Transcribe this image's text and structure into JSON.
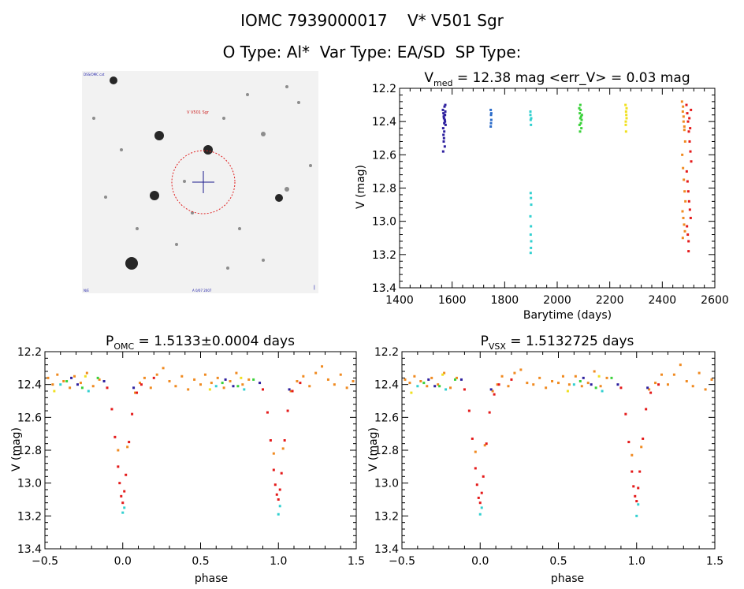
{
  "header": {
    "title_line1": "IOMC 7939000017    V* V501 Sgr",
    "title_line2": "O Type: Al*  Var Type: EA/SD  SP Type:"
  },
  "finder": {
    "target_label": "V V501 Sgr",
    "top_left_label": "DSS/OMC cat",
    "bottom_center_label": "A 0/07 2007",
    "bottom_left_label": "N/E",
    "colors": {
      "background": "#f2f2f2",
      "star": "#111111",
      "circle": "#e02020",
      "marker": "#1a1a8c"
    }
  },
  "panels": {
    "lightcurve": {
      "title_main": "V",
      "title_sub": "med",
      "title_rest": " = 12.38 mag <err_V> = 0.03 mag",
      "xlabel": "Barytime (days)",
      "ylabel": "V (mag)"
    },
    "phase_omc": {
      "title_main": "P",
      "title_sub": "OMC",
      "title_rest": " = 1.5133±0.0004 days",
      "xlabel": "phase",
      "ylabel": "V (mag)"
    },
    "phase_vsx": {
      "title_main": "P",
      "title_sub": "VSX",
      "title_rest": " = 1.5132725 days",
      "xlabel": "phase",
      "ylabel": "V (mag)"
    }
  },
  "chart_data": [
    {
      "type": "scatter",
      "title": "Vmed = 12.38 mag <err_V> = 0.03 mag",
      "xlabel": "Barytime (days)",
      "ylabel": "V (mag)",
      "xlim": [
        1400,
        2600
      ],
      "ylim": [
        12.2,
        13.4
      ],
      "y_inverted": true,
      "xticks": [
        "1400",
        "1600",
        "1800",
        "2000",
        "2200",
        "2400",
        "2600"
      ],
      "yticks": [
        "12.2",
        "12.4",
        "12.6",
        "12.8",
        "13.0",
        "13.2",
        "13.4"
      ],
      "series": [
        {
          "color": "#2d1f9e",
          "x": [
            1565,
            1567,
            1569,
            1571,
            1573,
            1575,
            1566,
            1568,
            1572,
            1570,
            1574,
            1567,
            1569,
            1571,
            1573,
            1568,
            1570,
            1572,
            1566,
            1574
          ],
          "y": [
            12.33,
            12.35,
            12.38,
            12.36,
            12.4,
            12.42,
            12.44,
            12.37,
            12.39,
            12.46,
            12.34,
            12.48,
            12.5,
            12.31,
            12.36,
            12.52,
            12.41,
            12.55,
            12.58,
            12.3
          ]
        },
        {
          "color": "#2a6bc9",
          "x": [
            1747,
            1748,
            1749,
            1748,
            1747,
            1749
          ],
          "y": [
            12.33,
            12.36,
            12.39,
            12.41,
            12.43,
            12.35
          ]
        },
        {
          "color": "#32d0d0",
          "x": [
            1898,
            1899,
            1900,
            1901,
            1899,
            1900,
            1901,
            1898,
            1900,
            1899,
            1901,
            1900,
            1899,
            1898
          ],
          "y": [
            12.36,
            12.39,
            12.42,
            12.38,
            12.83,
            12.86,
            12.9,
            12.97,
            13.03,
            13.08,
            13.12,
            13.16,
            13.19,
            12.34
          ]
        },
        {
          "color": "#3ad13a",
          "x": [
            2084,
            2086,
            2088,
            2090,
            2092,
            2094,
            2085,
            2089,
            2093,
            2087,
            2091,
            2088
          ],
          "y": [
            12.32,
            12.35,
            12.38,
            12.41,
            12.44,
            12.36,
            12.42,
            12.33,
            12.39,
            12.46,
            12.37,
            12.3
          ]
        },
        {
          "color": "#f0e020",
          "x": [
            2260,
            2262,
            2264,
            2261,
            2263,
            2262,
            2264,
            2261
          ],
          "y": [
            12.3,
            12.34,
            12.38,
            12.42,
            12.36,
            12.46,
            12.32,
            12.4
          ]
        },
        {
          "color": "#f08a20",
          "x": [
            2475,
            2478,
            2481,
            2484,
            2487,
            2476,
            2479,
            2482,
            2485,
            2488,
            2477,
            2480,
            2483,
            2486,
            2478,
            2481,
            2484,
            2479
          ],
          "y": [
            12.28,
            12.34,
            12.4,
            12.45,
            12.52,
            12.6,
            12.68,
            12.75,
            12.82,
            12.88,
            12.94,
            12.98,
            13.02,
            13.06,
            13.1,
            12.37,
            12.43,
            12.31
          ]
        },
        {
          "color": "#e41a1a",
          "x": [
            2492,
            2495,
            2498,
            2501,
            2504,
            2507,
            2510,
            2493,
            2496,
            2499,
            2502,
            2505,
            2508,
            2494,
            2497,
            2500,
            2503,
            2506,
            2509,
            2500
          ],
          "y": [
            12.3,
            12.35,
            12.4,
            12.46,
            12.52,
            12.58,
            12.64,
            12.7,
            12.76,
            12.82,
            12.88,
            12.93,
            12.98,
            13.03,
            13.08,
            13.12,
            12.38,
            12.44,
            12.33,
            13.18
          ]
        }
      ]
    },
    {
      "type": "scatter",
      "title": "POMC = 1.5133±0.0004 days",
      "xlabel": "phase",
      "ylabel": "V (mag)",
      "xlim": [
        -0.5,
        1.5
      ],
      "ylim": [
        12.2,
        13.4
      ],
      "y_inverted": true,
      "xticks": [
        "−0.5",
        "0.0",
        "0.5",
        "1.0",
        "1.5"
      ],
      "yticks": [
        "12.2",
        "12.4",
        "12.6",
        "12.8",
        "13.0",
        "13.2",
        "13.4"
      ],
      "series": [
        {
          "color": "#f08a20",
          "x": [
            -0.48,
            -0.45,
            -0.42,
            -0.38,
            -0.34,
            -0.31,
            -0.27,
            -0.23,
            -0.19,
            -0.15,
            0.08,
            0.11,
            0.14,
            0.18,
            0.22,
            0.26,
            0.3,
            0.34,
            0.38,
            0.42,
            0.46,
            0.5,
            0.53,
            0.57,
            0.61,
            0.65,
            0.69,
            0.73,
            0.77,
            0.81,
            1.08,
            1.12,
            1.16,
            1.2,
            1.24,
            1.28,
            1.32,
            1.36,
            1.4,
            1.44,
            1.48,
            -0.03,
            0.03,
            0.97,
            1.03
          ],
          "y": [
            12.36,
            12.4,
            12.34,
            12.38,
            12.42,
            12.35,
            12.39,
            12.33,
            12.41,
            12.37,
            12.45,
            12.39,
            12.36,
            12.42,
            12.34,
            12.3,
            12.38,
            12.41,
            12.35,
            12.43,
            12.37,
            12.4,
            12.34,
            12.39,
            12.36,
            12.42,
            12.38,
            12.33,
            12.4,
            12.37,
            12.44,
            12.38,
            12.35,
            12.41,
            12.33,
            12.29,
            12.37,
            12.4,
            12.34,
            12.42,
            12.38,
            12.8,
            12.78,
            12.82,
            12.79
          ]
        },
        {
          "color": "#e41a1a",
          "x": [
            -0.1,
            -0.07,
            -0.05,
            -0.03,
            -0.02,
            -0.01,
            0.0,
            0.01,
            0.02,
            0.04,
            0.06,
            0.09,
            0.12,
            0.2,
            0.9,
            0.93,
            0.95,
            0.97,
            0.98,
            0.99,
            1.0,
            1.01,
            1.02,
            1.04,
            1.06,
            1.09,
            1.14
          ],
          "y": [
            12.42,
            12.55,
            12.72,
            12.9,
            13.0,
            13.08,
            13.12,
            13.05,
            12.95,
            12.75,
            12.58,
            12.45,
            12.4,
            12.36,
            12.43,
            12.57,
            12.74,
            12.92,
            13.01,
            13.07,
            13.1,
            13.04,
            12.94,
            12.74,
            12.56,
            12.44,
            12.39
          ]
        },
        {
          "color": "#2d1f9e",
          "x": [
            -0.33,
            -0.29,
            -0.12,
            0.07,
            0.66,
            0.71,
            0.88,
            1.07
          ],
          "y": [
            12.36,
            12.4,
            12.38,
            12.42,
            12.37,
            12.41,
            12.39,
            12.43
          ]
        },
        {
          "color": "#32d0d0",
          "x": [
            -0.4,
            -0.22,
            0.0,
            0.01,
            0.6,
            0.78,
            1.0,
            1.01
          ],
          "y": [
            12.4,
            12.44,
            13.18,
            13.15,
            12.41,
            12.43,
            13.19,
            13.14
          ]
        },
        {
          "color": "#3ad13a",
          "x": [
            -0.36,
            -0.26,
            -0.16,
            0.64,
            0.74,
            0.84
          ],
          "y": [
            12.38,
            12.42,
            12.36,
            12.39,
            12.41,
            12.37
          ]
        },
        {
          "color": "#f0e020",
          "x": [
            -0.44,
            -0.24,
            0.56,
            0.76
          ],
          "y": [
            12.44,
            12.35,
            12.43,
            12.36
          ]
        }
      ]
    },
    {
      "type": "scatter",
      "title": "PVSX = 1.5132725 days",
      "xlabel": "phase",
      "ylabel": "V (mag)",
      "xlim": [
        -0.5,
        1.5
      ],
      "ylim": [
        12.2,
        13.4
      ],
      "y_inverted": true,
      "xticks": [
        "−0.5",
        "0.0",
        "0.5",
        "1.0",
        "1.5"
      ],
      "yticks": [
        "12.2",
        "12.4",
        "12.6",
        "12.8",
        "13.0",
        "13.2",
        "13.4"
      ],
      "series": [
        {
          "color": "#f08a20",
          "x": [
            -0.48,
            -0.45,
            -0.42,
            -0.38,
            -0.34,
            -0.31,
            -0.27,
            -0.23,
            -0.19,
            -0.15,
            0.08,
            0.11,
            0.14,
            0.18,
            0.22,
            0.26,
            0.3,
            0.34,
            0.38,
            0.42,
            0.46,
            0.5,
            0.53,
            0.57,
            0.61,
            0.65,
            0.69,
            0.73,
            0.77,
            0.81,
            1.08,
            1.12,
            1.16,
            1.2,
            1.24,
            1.28,
            1.32,
            1.36,
            1.4,
            1.44,
            1.48,
            -0.03,
            0.03,
            0.97,
            1.03
          ],
          "y": [
            12.37,
            12.39,
            12.35,
            12.38,
            12.41,
            12.36,
            12.4,
            12.33,
            12.42,
            12.36,
            12.44,
            12.4,
            12.35,
            12.41,
            12.33,
            12.31,
            12.39,
            12.4,
            12.36,
            12.42,
            12.38,
            12.39,
            12.35,
            12.4,
            12.35,
            12.41,
            12.39,
            12.32,
            12.41,
            12.36,
            12.43,
            12.39,
            12.34,
            12.4,
            12.34,
            12.28,
            12.38,
            12.41,
            12.33,
            12.43,
            12.37,
            12.81,
            12.77,
            12.83,
            12.78
          ]
        },
        {
          "color": "#e41a1a",
          "x": [
            -0.1,
            -0.07,
            -0.05,
            -0.03,
            -0.02,
            -0.01,
            0.0,
            0.01,
            0.02,
            0.04,
            0.06,
            0.09,
            0.12,
            0.2,
            0.9,
            0.93,
            0.95,
            0.97,
            0.98,
            0.99,
            1.0,
            1.01,
            1.02,
            1.04,
            1.06,
            1.09,
            1.14
          ],
          "y": [
            12.43,
            12.56,
            12.73,
            12.91,
            13.01,
            13.09,
            13.12,
            13.06,
            12.96,
            12.76,
            12.57,
            12.46,
            12.4,
            12.37,
            12.42,
            12.58,
            12.75,
            12.93,
            13.02,
            13.08,
            13.11,
            13.03,
            12.93,
            12.73,
            12.55,
            12.45,
            12.4
          ]
        },
        {
          "color": "#2d1f9e",
          "x": [
            -0.33,
            -0.29,
            -0.12,
            0.07,
            0.66,
            0.71,
            0.88,
            1.07
          ],
          "y": [
            12.37,
            12.41,
            12.37,
            12.43,
            12.36,
            12.4,
            12.4,
            12.42
          ]
        },
        {
          "color": "#32d0d0",
          "x": [
            -0.4,
            -0.22,
            0.0,
            0.01,
            0.6,
            0.78,
            1.0,
            1.01
          ],
          "y": [
            12.41,
            12.43,
            13.19,
            13.15,
            12.4,
            12.44,
            13.2,
            13.13
          ]
        },
        {
          "color": "#3ad13a",
          "x": [
            -0.36,
            -0.26,
            -0.16,
            0.64,
            0.74,
            0.84
          ],
          "y": [
            12.39,
            12.41,
            12.37,
            12.38,
            12.42,
            12.36
          ]
        },
        {
          "color": "#f0e020",
          "x": [
            -0.44,
            -0.24,
            0.56,
            0.76
          ],
          "y": [
            12.45,
            12.34,
            12.44,
            12.35
          ]
        }
      ]
    }
  ]
}
